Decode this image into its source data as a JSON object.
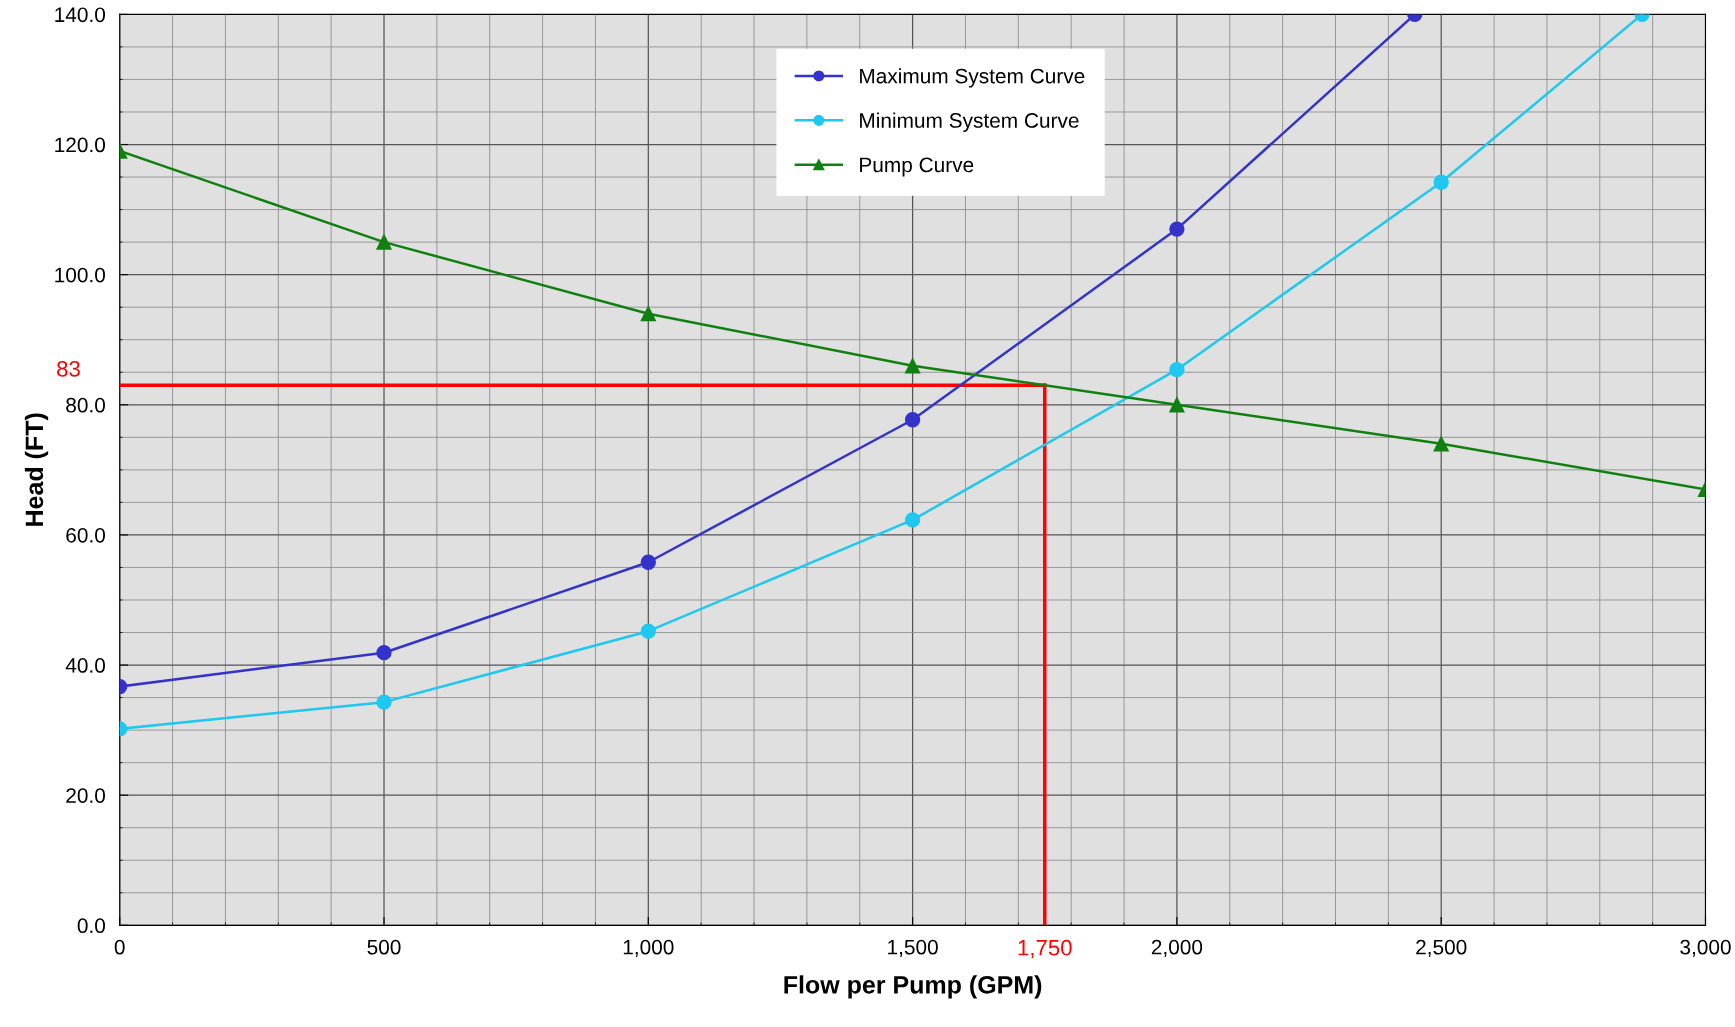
{
  "chart_data": {
    "type": "line",
    "xlabel": "Flow per Pump (GPM)",
    "ylabel": "Head (FT)",
    "x": [
      0,
      500,
      1000,
      1500,
      2000,
      2500,
      3000
    ],
    "series": [
      {
        "name": "Maximum System Curve",
        "color": "#3333cc",
        "marker": "circle",
        "x": [
          0,
          500,
          1000,
          1500,
          2000,
          2450
        ],
        "values": [
          36.7,
          41.9,
          55.8,
          77.7,
          107.0,
          140.0
        ]
      },
      {
        "name": "Minimum System Curve",
        "color": "#1ec8f0",
        "marker": "circle",
        "x": [
          0,
          500,
          1000,
          1500,
          2000,
          2500,
          2880
        ],
        "values": [
          30.2,
          34.3,
          45.2,
          62.3,
          85.4,
          114.2,
          140.0
        ]
      },
      {
        "name": "Pump Curve",
        "color": "#108010",
        "marker": "triangle",
        "values": [
          119.0,
          105.0,
          94.0,
          86.0,
          80.0,
          74.0,
          67.0
        ]
      }
    ],
    "ref_lines": [
      {
        "axis": "y",
        "value": 83,
        "label": "83",
        "color": "#ff0000"
      },
      {
        "axis": "x",
        "value": 1750,
        "label": "1,750",
        "color": "#ff0000"
      }
    ],
    "xlim": [
      0,
      3000
    ],
    "xticks": [
      0,
      500,
      {
        "value": 1000,
        "label": "1,000"
      },
      {
        "value": 1500,
        "label": "1,500"
      },
      {
        "value": 2000,
        "label": "2,000"
      },
      {
        "value": 2500,
        "label": "2,500"
      },
      {
        "value": 3000,
        "label": "3,000"
      }
    ],
    "ylim": [
      0,
      140
    ],
    "yticks": [
      {
        "value": 0,
        "label": "0.0"
      },
      {
        "value": 20,
        "label": "20.0"
      },
      {
        "value": 40,
        "label": "40.0"
      },
      {
        "value": 60,
        "label": "60.0"
      },
      {
        "value": 80,
        "label": "80.0"
      },
      {
        "value": 100,
        "label": "100.0"
      },
      {
        "value": 120,
        "label": "120.0"
      },
      {
        "value": 140,
        "label": "140.0"
      }
    ],
    "grid": true,
    "legend": "top",
    "line_style": "solid"
  }
}
